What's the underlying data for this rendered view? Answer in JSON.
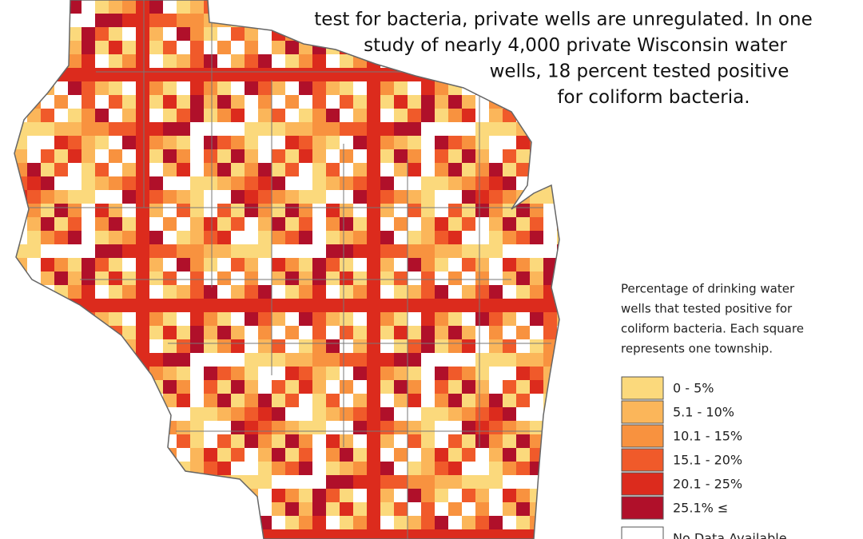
{
  "annotation": {
    "lines": [
      "test for bacteria, private wells are unregulated. In one",
      "study of nearly 4,000 private Wisconsin water",
      "wells, 18 percent tested positive",
      "for coliform bacteria."
    ]
  },
  "legend": {
    "caption": [
      "Percentage of drinking water",
      "wells that tested positive for",
      "coliform bacteria. Each square",
      "represents one township."
    ],
    "items": [
      {
        "label": "0 - 5%",
        "color": "#fbd97c"
      },
      {
        "label": "5.1 - 10%",
        "color": "#fbb65a"
      },
      {
        "label": "10.1 - 15%",
        "color": "#f8923f"
      },
      {
        "label": "15.1 - 20%",
        "color": "#f05a2a"
      },
      {
        "label": "20.1 - 25%",
        "color": "#dc2b1d"
      },
      {
        "label": "25.1% ≤",
        "color": "#b0102a"
      },
      {
        "label": "No Data Available",
        "color": "#ffffff"
      }
    ]
  }
}
